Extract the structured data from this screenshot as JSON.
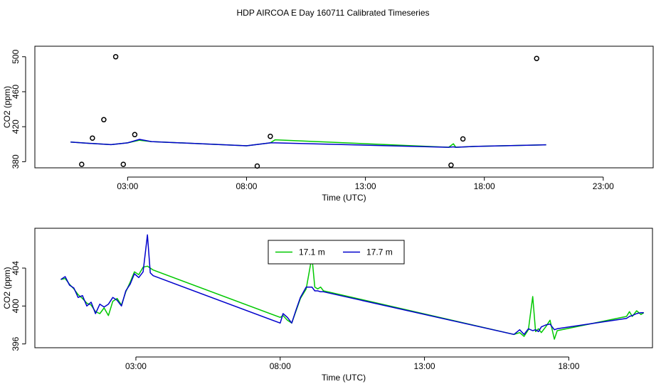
{
  "title": "HDP AIRCOA E  Day 160711  Calibrated Timeseries",
  "colors": {
    "green": "#00c800",
    "blue": "#0000cc",
    "axis": "#000000"
  },
  "chart_data": [
    {
      "type": "scatter+line",
      "xlabel": "Time (UTC)",
      "ylabel": "CO2 (ppm)",
      "x_unit": "hours UTC",
      "xlim": [
        -0.9,
        25.1
      ],
      "ylim": [
        373,
        512
      ],
      "xticks": [
        {
          "value": 3,
          "label": "03:00"
        },
        {
          "value": 8,
          "label": "08:00"
        },
        {
          "value": 13,
          "label": "13:00"
        },
        {
          "value": 18,
          "label": "18:00"
        },
        {
          "value": 23,
          "label": "23:00"
        }
      ],
      "yticks": [
        {
          "value": 380,
          "label": "380"
        },
        {
          "value": 420,
          "label": "420"
        },
        {
          "value": 460,
          "label": "460"
        },
        {
          "value": 500,
          "label": "500"
        }
      ],
      "calibration_points": {
        "x": [
          1.07,
          1.52,
          2.0,
          2.5,
          2.82,
          3.3,
          8.45,
          9.0,
          16.6,
          17.1,
          20.2
        ],
        "y": [
          377,
          407,
          428,
          500,
          377,
          411,
          375,
          409,
          376,
          406,
          498
        ]
      },
      "series": [
        {
          "name": "17.1 m",
          "color": "#00c800",
          "x": [
            0.6,
            1.5,
            2.3,
            3.0,
            3.5,
            4.0,
            8.0,
            9.0,
            9.2,
            16.5,
            16.7,
            16.8,
            17.2,
            17.6,
            20.6
          ],
          "y": [
            402.5,
            400.8,
            399.5,
            401.5,
            404.5,
            403.0,
            398.2,
            401.5,
            405.0,
            396.5,
            400.5,
            396.5,
            397.0,
            397.5,
            399.3
          ]
        },
        {
          "name": "17.7 m",
          "color": "#0000cc",
          "x": [
            0.6,
            1.5,
            2.3,
            3.0,
            3.5,
            4.0,
            8.0,
            9.0,
            9.2,
            16.5,
            16.7,
            16.8,
            17.2,
            17.6,
            20.6
          ],
          "y": [
            402.5,
            400.8,
            399.5,
            401.5,
            405.5,
            403.0,
            398.2,
            401.5,
            401.5,
            396.5,
            397.0,
            396.5,
            397.0,
            397.5,
            399.3
          ]
        }
      ]
    },
    {
      "type": "line",
      "xlabel": "Time (UTC)",
      "ylabel": "CO2 (ppm)",
      "x_unit": "hours UTC",
      "xlim": [
        -0.5,
        20.9
      ],
      "ylim": [
        395.6,
        408.2
      ],
      "xticks": [
        {
          "value": 3,
          "label": "03:00"
        },
        {
          "value": 8,
          "label": "08:00"
        },
        {
          "value": 13,
          "label": "13:00"
        },
        {
          "value": 18,
          "label": "18:00"
        }
      ],
      "yticks": [
        {
          "value": 396,
          "label": "396"
        },
        {
          "value": 400,
          "label": "400"
        },
        {
          "value": 404,
          "label": "404"
        }
      ],
      "legend": {
        "placement": "top-center",
        "entries": [
          "17.1 m",
          "17.7 m"
        ]
      },
      "series": [
        {
          "name": "17.1 m",
          "color": "#00c800",
          "x": [
            0.4,
            0.55,
            0.7,
            0.85,
            1.0,
            1.15,
            1.3,
            1.45,
            1.6,
            1.75,
            1.9,
            2.05,
            2.2,
            2.35,
            2.5,
            2.65,
            2.8,
            2.95,
            3.1,
            3.25,
            3.4,
            3.5,
            3.6,
            8.0,
            8.1,
            8.25,
            8.4,
            8.55,
            8.7,
            8.9,
            9.1,
            9.2,
            9.3,
            9.4,
            9.5,
            9.65,
            16.1,
            16.3,
            16.45,
            16.6,
            16.75,
            16.85,
            16.95,
            17.05,
            17.2,
            17.35,
            17.5,
            17.6,
            20.0,
            20.1,
            20.2,
            20.35,
            20.5,
            20.6
          ],
          "y": [
            402.8,
            402.9,
            402.3,
            401.8,
            401.2,
            400.8,
            400.3,
            400.1,
            399.4,
            399.2,
            399.8,
            399.0,
            400.5,
            400.8,
            400.1,
            401.5,
            402.5,
            403.6,
            403.3,
            404.1,
            404.2,
            404.0,
            403.8,
            398.8,
            399.0,
            398.5,
            398.2,
            399.5,
            400.8,
            401.8,
            405.2,
            402.0,
            401.8,
            402.0,
            401.6,
            401.5,
            397.0,
            397.2,
            396.8,
            397.5,
            401.0,
            397.3,
            397.6,
            397.2,
            397.8,
            398.5,
            396.5,
            397.4,
            398.9,
            399.4,
            398.9,
            399.5,
            399.1,
            399.3
          ]
        },
        {
          "name": "17.7 m",
          "color": "#0000cc",
          "x": [
            0.4,
            0.55,
            0.7,
            0.85,
            1.0,
            1.15,
            1.3,
            1.45,
            1.6,
            1.75,
            1.9,
            2.05,
            2.2,
            2.35,
            2.5,
            2.65,
            2.8,
            2.95,
            3.1,
            3.25,
            3.4,
            3.5,
            3.6,
            8.0,
            8.1,
            8.25,
            8.4,
            8.55,
            8.7,
            8.9,
            9.1,
            9.2,
            9.3,
            9.4,
            9.5,
            9.65,
            16.1,
            16.3,
            16.45,
            16.6,
            16.75,
            16.85,
            16.95,
            17.05,
            17.2,
            17.35,
            17.5,
            17.6,
            20.0,
            20.1,
            20.2,
            20.35,
            20.5,
            20.6
          ],
          "y": [
            402.8,
            403.1,
            402.2,
            401.9,
            400.9,
            401.1,
            400.0,
            400.4,
            399.2,
            400.2,
            399.9,
            400.2,
            400.9,
            400.6,
            400.0,
            401.6,
            402.3,
            403.4,
            403.0,
            403.6,
            407.5,
            403.5,
            403.2,
            398.2,
            399.2,
            398.8,
            398.2,
            399.6,
            400.9,
            402.0,
            402.0,
            401.6,
            401.6,
            401.5,
            401.5,
            401.4,
            397.0,
            397.5,
            397.0,
            397.6,
            397.4,
            397.5,
            397.3,
            397.8,
            398.0,
            398.1,
            397.5,
            397.6,
            398.7,
            398.9,
            399.0,
            399.2,
            399.3,
            399.3
          ]
        }
      ]
    }
  ]
}
